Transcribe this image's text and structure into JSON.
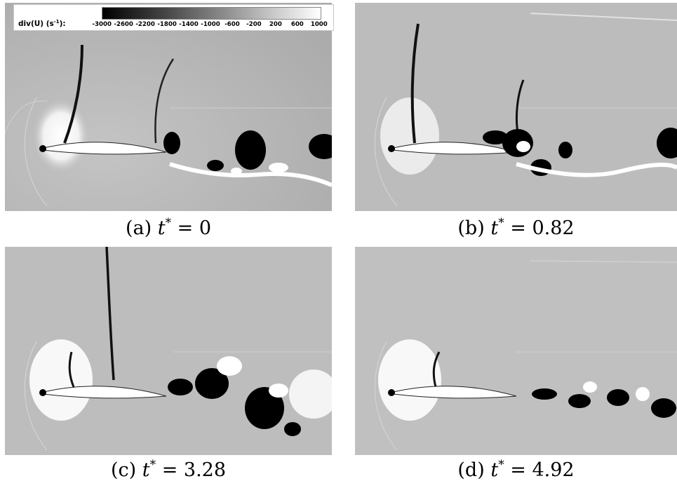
{
  "legend": {
    "label_main": "div(U) (s",
    "label_exp": "-1",
    "label_tail": "):",
    "ticks": [
      "-3000",
      "-2600",
      "-2200",
      "-1800",
      "-1400",
      "-1000",
      "-600",
      "-200",
      "200",
      "600",
      "1000"
    ],
    "colormap": [
      "#000000",
      "#ffffff"
    ]
  },
  "panels": [
    {
      "id": "a",
      "caption_prefix": "(a) ",
      "caption_var": "t",
      "caption_sup": "*",
      "caption_value": " = 0"
    },
    {
      "id": "b",
      "caption_prefix": "(b) ",
      "caption_var": "t",
      "caption_sup": "*",
      "caption_value": " = 0.82"
    },
    {
      "id": "c",
      "caption_prefix": "(c) ",
      "caption_var": "t",
      "caption_sup": "*",
      "caption_value": " = 3.28"
    },
    {
      "id": "d",
      "caption_prefix": "(d) ",
      "caption_var": "t",
      "caption_sup": "*",
      "caption_value": " = 4.92"
    }
  ]
}
